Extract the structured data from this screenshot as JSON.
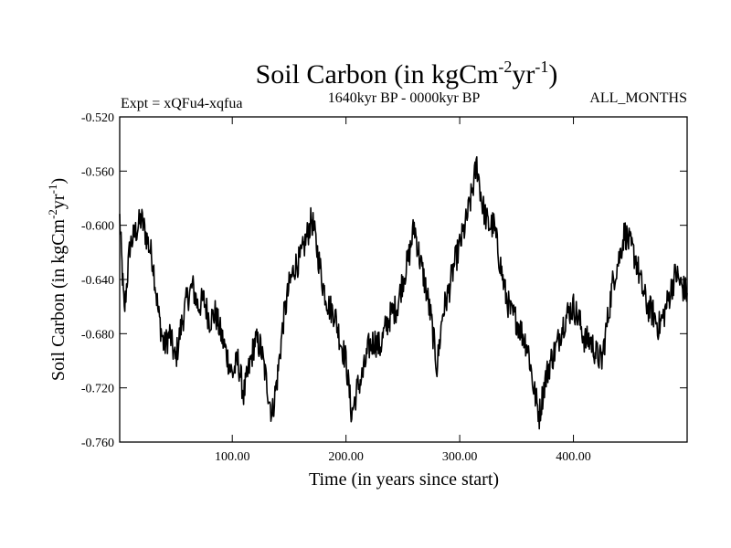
{
  "chart_data": {
    "type": "line",
    "title": {
      "text": "Soil Carbon (in kgCm",
      "sup1": "-2",
      "mid": "yr",
      "sup2": "-1",
      "end": ")"
    },
    "subtitle_left": "Expt = xQFu4-xqfua",
    "subtitle_center": "1640kyr BP - 0000kyr BP",
    "subtitle_right": "ALL_MONTHS",
    "xlabel": "Time (in years since start)",
    "ylabel": {
      "text": "Soil Carbon (in kgCm",
      "sup1": "-2",
      "mid": "yr",
      "sup2": "-1",
      "end": ")"
    },
    "xlim": [
      1,
      500
    ],
    "ylim": [
      -0.76,
      -0.52
    ],
    "xticks": [
      100,
      200,
      300,
      400
    ],
    "xtick_labels": [
      "100.00",
      "200.00",
      "300.00",
      "400.00"
    ],
    "yticks": [
      -0.52,
      -0.56,
      -0.6,
      -0.64,
      -0.68,
      -0.72,
      -0.76
    ],
    "ytick_labels": [
      "-0.520",
      "-0.560",
      "-0.600",
      "-0.640",
      "-0.680",
      "-0.720",
      "-0.760"
    ],
    "grid": false,
    "series": [
      {
        "x": [
          1,
          5,
          10,
          15,
          20,
          25,
          30,
          35,
          40,
          45,
          50,
          55,
          60,
          65,
          70,
          75,
          80,
          85,
          90,
          95,
          100,
          105,
          110,
          115,
          120,
          125,
          130,
          135,
          140,
          145,
          150,
          155,
          160,
          165,
          170,
          175,
          180,
          185,
          190,
          195,
          200,
          205,
          210,
          215,
          220,
          225,
          230,
          235,
          240,
          245,
          250,
          255,
          260,
          265,
          270,
          275,
          280,
          285,
          290,
          295,
          300,
          305,
          310,
          315,
          320,
          325,
          330,
          335,
          340,
          345,
          350,
          355,
          360,
          365,
          370,
          375,
          380,
          385,
          390,
          395,
          400,
          405,
          410,
          415,
          420,
          425,
          430,
          435,
          440,
          445,
          450,
          455,
          460,
          465,
          470,
          475,
          480,
          485,
          490,
          495,
          500
        ],
        "y": [
          -0.595,
          -0.665,
          -0.615,
          -0.605,
          -0.595,
          -0.61,
          -0.625,
          -0.665,
          -0.69,
          -0.68,
          -0.7,
          -0.675,
          -0.655,
          -0.645,
          -0.66,
          -0.655,
          -0.67,
          -0.665,
          -0.68,
          -0.695,
          -0.71,
          -0.7,
          -0.725,
          -0.705,
          -0.685,
          -0.69,
          -0.715,
          -0.74,
          -0.71,
          -0.67,
          -0.645,
          -0.63,
          -0.625,
          -0.61,
          -0.595,
          -0.62,
          -0.645,
          -0.66,
          -0.665,
          -0.685,
          -0.7,
          -0.74,
          -0.72,
          -0.71,
          -0.69,
          -0.685,
          -0.69,
          -0.675,
          -0.665,
          -0.66,
          -0.64,
          -0.625,
          -0.6,
          -0.625,
          -0.645,
          -0.67,
          -0.705,
          -0.665,
          -0.65,
          -0.63,
          -0.615,
          -0.6,
          -0.58,
          -0.555,
          -0.585,
          -0.6,
          -0.6,
          -0.625,
          -0.65,
          -0.665,
          -0.67,
          -0.68,
          -0.69,
          -0.72,
          -0.74,
          -0.715,
          -0.7,
          -0.69,
          -0.675,
          -0.665,
          -0.66,
          -0.67,
          -0.685,
          -0.685,
          -0.695,
          -0.7,
          -0.67,
          -0.64,
          -0.625,
          -0.605,
          -0.615,
          -0.625,
          -0.645,
          -0.66,
          -0.665,
          -0.675,
          -0.665,
          -0.65,
          -0.635,
          -0.645,
          -0.65
        ]
      }
    ]
  }
}
